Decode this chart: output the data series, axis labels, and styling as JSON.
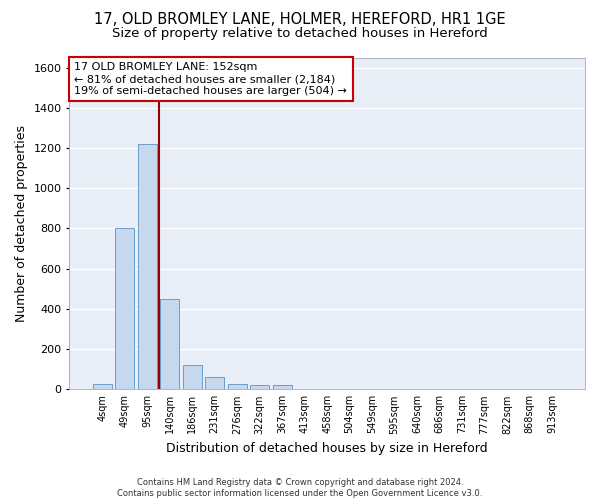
{
  "title_line1": "17, OLD BROMLEY LANE, HOLMER, HEREFORD, HR1 1GE",
  "title_line2": "Size of property relative to detached houses in Hereford",
  "xlabel": "Distribution of detached houses by size in Hereford",
  "ylabel": "Number of detached properties",
  "footnote": "Contains HM Land Registry data © Crown copyright and database right 2024.\nContains public sector information licensed under the Open Government Licence v3.0.",
  "bar_labels": [
    "4sqm",
    "49sqm",
    "95sqm",
    "140sqm",
    "186sqm",
    "231sqm",
    "276sqm",
    "322sqm",
    "367sqm",
    "413sqm",
    "458sqm",
    "504sqm",
    "549sqm",
    "595sqm",
    "640sqm",
    "686sqm",
    "731sqm",
    "777sqm",
    "822sqm",
    "868sqm",
    "913sqm"
  ],
  "bar_values": [
    25,
    800,
    1220,
    450,
    120,
    60,
    25,
    20,
    20,
    0,
    0,
    0,
    0,
    0,
    0,
    0,
    0,
    0,
    0,
    0,
    0
  ],
  "bar_color": "#c5d8ee",
  "bar_edge_color": "#6b9dc8",
  "highlight_line_color": "#990000",
  "annotation_line1": "17 OLD BROMLEY LANE: 152sqm",
  "annotation_line2": "← 81% of detached houses are smaller (2,184)",
  "annotation_line3": "19% of semi-detached houses are larger (504) →",
  "annotation_box_color": "#cc0000",
  "ylim": [
    0,
    1650
  ],
  "yticks": [
    0,
    200,
    400,
    600,
    800,
    1000,
    1200,
    1400,
    1600
  ],
  "background_color": "#e8eef8",
  "grid_color": "#ffffff",
  "title_fontsize": 10.5,
  "subtitle_fontsize": 9.5,
  "axis_label_fontsize": 9,
  "tick_fontsize": 8,
  "annotation_fontsize": 8
}
